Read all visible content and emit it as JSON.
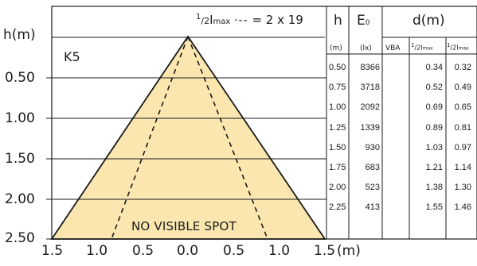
{
  "diagram": {
    "model_label": "K5",
    "y_axis_title": "h(m)",
    "x_axis_unit": "(m)",
    "header_formula_prefix": "1",
    "header_formula_mid": "/2",
    "header_formula_i": "I",
    "header_formula_max": "max",
    "header_formula_rest": "= 2 x 19",
    "spot_text": "NO VISIBLE SPOT",
    "y_ticks": [
      "0.50",
      "1.00",
      "1.50",
      "2.00",
      "2.50"
    ],
    "x_ticks": [
      "1.5",
      "1.0",
      "0.5",
      "0.0",
      "0.5",
      "1.0",
      "1.5"
    ],
    "beam_fill_color": "#fbe6b0",
    "line_color": "#1a1a1a"
  },
  "table": {
    "col_h_label": "h",
    "col_e_label": "E",
    "col_e_sub": "0",
    "col_d_label": "d(m)",
    "unit_h": "(m)",
    "unit_e": "(lx)",
    "sub_vba": "VBA",
    "sub_half_prefix_a": "1",
    "sub_half_suffix_a": "/2I",
    "sub_half_max_a": "max",
    "sub_half_prefix_b": "1",
    "sub_half_suffix_b": "/2I",
    "sub_half_max_b": "max",
    "rows": [
      {
        "h": "0.50",
        "e": "8366",
        "vba": "",
        "d1": "0.34",
        "d2": "0.32"
      },
      {
        "h": "0.75",
        "e": "3718",
        "vba": "",
        "d1": "0.52",
        "d2": "0.49"
      },
      {
        "h": "1.00",
        "e": "2092",
        "vba": "",
        "d1": "0.69",
        "d2": "0.65"
      },
      {
        "h": "1.25",
        "e": "1339",
        "vba": "",
        "d1": "0.89",
        "d2": "0.81"
      },
      {
        "h": "1.50",
        "e": "930",
        "vba": "",
        "d1": "1.03",
        "d2": "0.97"
      },
      {
        "h": "1.75",
        "e": "683",
        "vba": "",
        "d1": "1.21",
        "d2": "1.14"
      },
      {
        "h": "2.00",
        "e": "523",
        "vba": "",
        "d1": "1.38",
        "d2": "1.30"
      },
      {
        "h": "2.25",
        "e": "413",
        "vba": "",
        "d1": "1.55",
        "d2": "1.46"
      }
    ]
  }
}
